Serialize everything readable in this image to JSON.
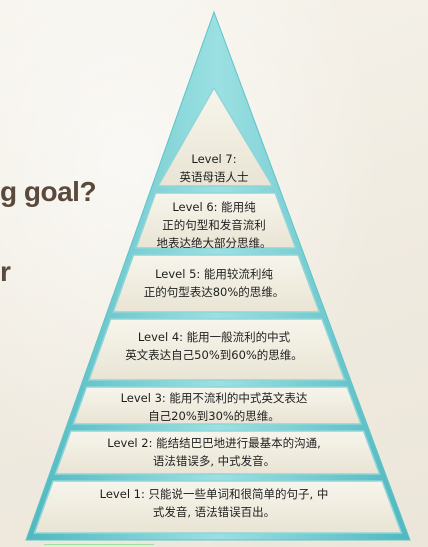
{
  "side_text": {
    "line1": "g goal?",
    "line2": "r"
  },
  "pyramid": {
    "levels": [
      {
        "lines": [
          "Level 7:",
          "英语母语人士"
        ]
      },
      {
        "lines": [
          "Level 6: 能用纯",
          "正的句型和发音流利",
          "地表达绝大部分思维。"
        ]
      },
      {
        "lines": [
          "Level 5: 能用较流利纯",
          "正的句型表达80%的思维。"
        ]
      },
      {
        "lines": [
          "Level 4: 能用一般流利的中式",
          "英文表达自己50%到60%的思维。"
        ]
      },
      {
        "lines": [
          "Level 3: 能用不流利的中式英文表达",
          "自己20%到30%的思维。"
        ]
      },
      {
        "lines": [
          "Level 2: 能结结巴巴地进行最基本的沟通,",
          "语法错误多, 中式发音。"
        ]
      },
      {
        "lines": [
          "Level 1: 只能说一些单词和很简单的句子, 中",
          "式发音, 语法错误百出。"
        ]
      }
    ]
  },
  "colors": {
    "band_fill": "#f2efe3",
    "band_border": "#8fd6d9",
    "edge": "#5ec3c8"
  }
}
